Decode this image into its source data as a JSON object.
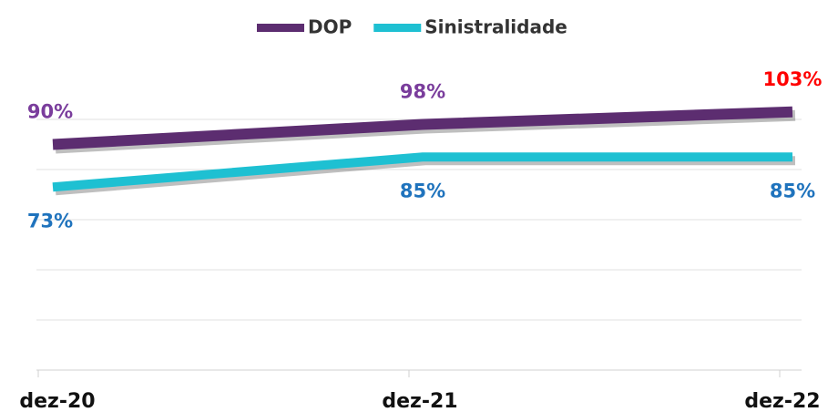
{
  "chart_data": {
    "type": "line",
    "categories": [
      "dez-20",
      "dez-21",
      "dez-22"
    ],
    "series": [
      {
        "name": "DOP",
        "color": "#5c2d70",
        "values": [
          90,
          98,
          103
        ],
        "value_labels": [
          "90%",
          "98%",
          "103%"
        ],
        "label_colors": [
          "#7a3d9c",
          "#7a3d9c",
          "#ff0000"
        ]
      },
      {
        "name": "Sinistralidade",
        "color": "#1ec0d2",
        "values": [
          73,
          85,
          85
        ],
        "value_labels": [
          "73%",
          "85%",
          "85%"
        ],
        "label_colors": [
          "#1f73bd",
          "#1f73bd",
          "#1f73bd"
        ]
      }
    ],
    "ylim": [
      0,
      120
    ],
    "yticks": [
      0,
      20,
      40,
      60,
      80,
      100
    ],
    "grid": true,
    "legend": "top"
  }
}
